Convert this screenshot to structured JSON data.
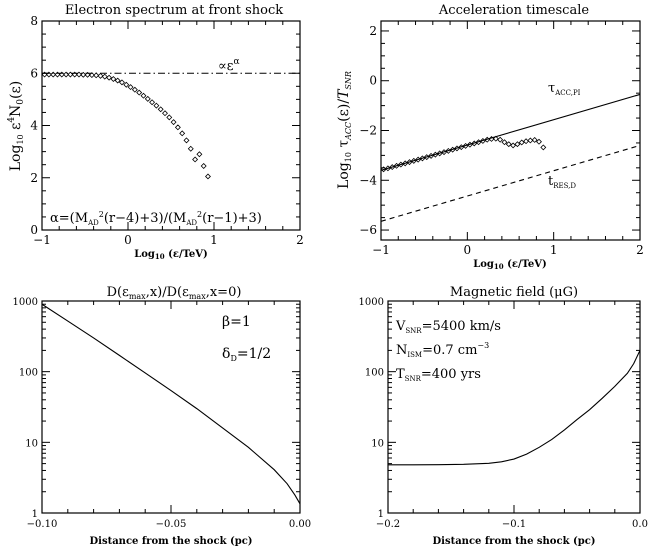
{
  "figure_background": "#ffffff",
  "ink_color": "#000000",
  "chart_data": [
    {
      "type": "scatter",
      "title": "Electron spectrum at front shock",
      "xlabel": "Log₁₀ (ε/TeV)",
      "ylabel": "Log₁₀ ε⁴N₀(ε)",
      "xlim": [
        -1,
        2
      ],
      "ylim": [
        0,
        8
      ],
      "xticks": [
        -1,
        0,
        1,
        2
      ],
      "yticks": [
        0,
        2,
        4,
        6,
        8
      ],
      "grid": false,
      "x": [
        -0.97,
        -0.92,
        -0.87,
        -0.82,
        -0.77,
        -0.72,
        -0.67,
        -0.62,
        -0.57,
        -0.52,
        -0.47,
        -0.42,
        -0.37,
        -0.32,
        -0.27,
        -0.22,
        -0.17,
        -0.12,
        -0.07,
        -0.02,
        0.03,
        0.08,
        0.13,
        0.18,
        0.23,
        0.28,
        0.33,
        0.38,
        0.43,
        0.48,
        0.53,
        0.58,
        0.63,
        0.68,
        0.73,
        0.78,
        0.83,
        0.88,
        0.93
      ],
      "y": [
        5.95,
        5.95,
        5.95,
        5.95,
        5.95,
        5.95,
        5.95,
        5.95,
        5.95,
        5.94,
        5.94,
        5.93,
        5.92,
        5.9,
        5.87,
        5.83,
        5.78,
        5.72,
        5.65,
        5.56,
        5.47,
        5.37,
        5.26,
        5.14,
        5.02,
        4.89,
        4.76,
        4.62,
        4.47,
        4.31,
        4.13,
        3.93,
        3.7,
        3.43,
        3.11,
        2.7,
        2.9,
        2.45,
        2.05
      ],
      "reference_line": {
        "style": "dash-dot",
        "y": 6.0
      },
      "annotations": {
        "power_law": "∝ε^α",
        "alpha_formula": "α=(M_AD²(r−4)+3)/(M_AD²(r−1)+3)"
      }
    },
    {
      "type": "line",
      "title": "Acceleration timescale",
      "xlabel": "Log₁₀ (ε/TeV)",
      "ylabel": "Log₁₀ τ_ACC(ε)/T_SNR",
      "xlim": [
        -1,
        2
      ],
      "ylim": [
        -6.4,
        2.4
      ],
      "xticks": [
        -1,
        0,
        1,
        2
      ],
      "yticks": [
        -6,
        -4,
        -2,
        0,
        2
      ],
      "grid": false,
      "series": [
        {
          "name": "τ_ACC,PI",
          "style": "solid",
          "x": [
            -1,
            2
          ],
          "y": [
            -3.6,
            -0.55
          ]
        },
        {
          "name": "t_RES,D",
          "style": "dashed",
          "x": [
            -1,
            2
          ],
          "y": [
            -5.65,
            -2.6
          ]
        },
        {
          "style": "markers",
          "x": [
            -0.97,
            -0.92,
            -0.87,
            -0.82,
            -0.77,
            -0.72,
            -0.67,
            -0.62,
            -0.57,
            -0.52,
            -0.47,
            -0.42,
            -0.37,
            -0.32,
            -0.27,
            -0.22,
            -0.17,
            -0.12,
            -0.07,
            -0.02,
            0.03,
            0.08,
            0.13,
            0.18,
            0.23,
            0.28,
            0.33,
            0.38,
            0.43,
            0.48,
            0.53,
            0.58,
            0.63,
            0.68,
            0.73,
            0.78,
            0.83,
            0.88
          ],
          "y": [
            -3.56,
            -3.52,
            -3.47,
            -3.42,
            -3.37,
            -3.32,
            -3.27,
            -3.22,
            -3.17,
            -3.12,
            -3.07,
            -3.02,
            -2.97,
            -2.92,
            -2.87,
            -2.82,
            -2.77,
            -2.72,
            -2.67,
            -2.62,
            -2.57,
            -2.52,
            -2.47,
            -2.42,
            -2.37,
            -2.34,
            -2.33,
            -2.37,
            -2.47,
            -2.55,
            -2.6,
            -2.55,
            -2.48,
            -2.43,
            -2.4,
            -2.38,
            -2.45,
            -2.68
          ]
        }
      ]
    },
    {
      "type": "line",
      "title": "D(ε_max,x)/D(ε_max,x=0)",
      "xlabel": "Distance from the shock (pc)",
      "ylabel": "",
      "xlim": [
        -0.1,
        0
      ],
      "ylim": [
        1,
        1000
      ],
      "yscale": "log",
      "xticks": [
        -0.1,
        -0.05,
        0
      ],
      "xtick_labels": [
        "−0.10",
        "−0.05",
        "0.00"
      ],
      "yticks": [
        1,
        10,
        100,
        1000
      ],
      "grid": false,
      "x": [
        -0.1,
        -0.09,
        -0.08,
        -0.07,
        -0.06,
        -0.05,
        -0.04,
        -0.03,
        -0.02,
        -0.01,
        -0.005,
        -0.002,
        0
      ],
      "y": [
        900,
        520,
        300,
        170,
        96,
        54,
        30,
        16,
        8.5,
        4.1,
        2.6,
        1.8,
        1.35
      ],
      "annotations": {
        "beta": "β=1",
        "delta": "δ_D=1/2"
      }
    },
    {
      "type": "line",
      "title": "Magnetic field (μG)",
      "xlabel": "Distance from the shock (pc)",
      "ylabel": "",
      "xlim": [
        -0.2,
        0
      ],
      "ylim": [
        1,
        1000
      ],
      "yscale": "log",
      "xticks": [
        -0.2,
        -0.1,
        0
      ],
      "xtick_labels": [
        "−0.2",
        "−0.1",
        "0.0"
      ],
      "yticks": [
        1,
        10,
        100,
        1000
      ],
      "grid": false,
      "x": [
        -0.2,
        -0.18,
        -0.16,
        -0.14,
        -0.12,
        -0.11,
        -0.1,
        -0.09,
        -0.08,
        -0.07,
        -0.06,
        -0.05,
        -0.04,
        -0.03,
        -0.02,
        -0.01,
        -0.005,
        0
      ],
      "y": [
        4.8,
        4.8,
        4.82,
        4.88,
        5.05,
        5.3,
        5.8,
        6.8,
        8.5,
        11,
        15,
        21,
        29,
        42,
        62,
        95,
        130,
        200
      ],
      "annotations": {
        "v_snr": "V_SNR=5400 km/s",
        "n_ism": "N_ISM=0.7 cm⁻³",
        "t_snr": "T_SNR=400 yrs"
      }
    }
  ]
}
